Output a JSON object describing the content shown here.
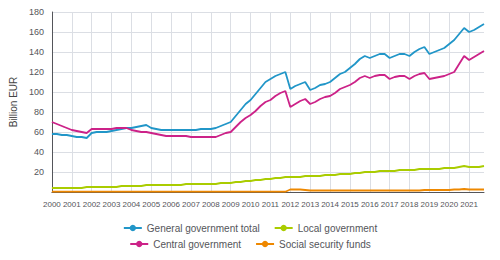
{
  "chart_data": {
    "type": "line",
    "ylabel": "Billion EUR",
    "categories": [
      "2000",
      null,
      null,
      null,
      "2001",
      null,
      null,
      null,
      "2002",
      null,
      null,
      null,
      "2003",
      null,
      null,
      null,
      "2004",
      null,
      null,
      null,
      "2005",
      null,
      null,
      null,
      "2006",
      null,
      null,
      null,
      "2007",
      null,
      null,
      null,
      "2008",
      null,
      null,
      null,
      "2009",
      null,
      null,
      null,
      "2010",
      null,
      null,
      null,
      "2011",
      null,
      null,
      null,
      "2012",
      null,
      null,
      null,
      "2013",
      null,
      null,
      null,
      "2014",
      null,
      null,
      null,
      "2015",
      null,
      null,
      null,
      "2016",
      null,
      null,
      null,
      "2017",
      null,
      null,
      null,
      "2018",
      null,
      null,
      null,
      "2019",
      null,
      null,
      null,
      "2020",
      null,
      null,
      null,
      "2021",
      null,
      null,
      null
    ],
    "series": [
      {
        "name": "General government total",
        "color": "#2196c8",
        "values": [
          58,
          58,
          57,
          57,
          56,
          55,
          55,
          54,
          59,
          60,
          60,
          60,
          61,
          62,
          63,
          64,
          64,
          65,
          66,
          67,
          64,
          63,
          62,
          62,
          62,
          62,
          62,
          62,
          62,
          62,
          63,
          63,
          63,
          64,
          66,
          68,
          70,
          76,
          82,
          88,
          92,
          98,
          104,
          110,
          113,
          116,
          118,
          120,
          103,
          106,
          108,
          110,
          102,
          104,
          107,
          108,
          110,
          114,
          118,
          120,
          124,
          128,
          133,
          136,
          134,
          136,
          138,
          138,
          134,
          136,
          138,
          138,
          136,
          140,
          143,
          145,
          138,
          140,
          142,
          144,
          148,
          152,
          158,
          164,
          160,
          162,
          165,
          168
        ]
      },
      {
        "name": "Central government",
        "color": "#cc2288",
        "values": [
          70,
          68,
          66,
          64,
          62,
          61,
          60,
          59,
          63,
          63,
          63,
          63,
          63,
          64,
          64,
          64,
          62,
          61,
          60,
          60,
          59,
          58,
          57,
          56,
          56,
          56,
          56,
          56,
          55,
          55,
          55,
          55,
          55,
          55,
          57,
          59,
          60,
          65,
          70,
          74,
          77,
          81,
          86,
          90,
          92,
          96,
          99,
          101,
          85,
          88,
          91,
          93,
          88,
          90,
          93,
          95,
          96,
          99,
          103,
          105,
          107,
          110,
          114,
          116,
          114,
          116,
          117,
          117,
          113,
          115,
          116,
          116,
          113,
          116,
          118,
          119,
          113,
          114,
          115,
          116,
          118,
          120,
          128,
          136,
          132,
          135,
          138,
          141
        ]
      },
      {
        "name": "Local government",
        "color": "#aacc00",
        "values": [
          4,
          4,
          4,
          4,
          4,
          4,
          4,
          5,
          5,
          5,
          5,
          5,
          5,
          5,
          6,
          6,
          6,
          6,
          6,
          7,
          7,
          7,
          7,
          7,
          7,
          7,
          7,
          8,
          8,
          8,
          8,
          8,
          8,
          8,
          9,
          9,
          9,
          10,
          10,
          11,
          11,
          12,
          12,
          13,
          13,
          14,
          14,
          15,
          15,
          15,
          15,
          16,
          16,
          16,
          16,
          17,
          17,
          17,
          18,
          18,
          18,
          19,
          19,
          20,
          20,
          20,
          21,
          21,
          21,
          21,
          22,
          22,
          22,
          22,
          23,
          23,
          23,
          23,
          23,
          24,
          24,
          24,
          25,
          26,
          25,
          25,
          25,
          26
        ]
      },
      {
        "name": "Social security funds",
        "color": "#ee8800",
        "values": [
          0.3,
          0.3,
          0.3,
          0.3,
          0.3,
          0.3,
          0.3,
          0.3,
          0.3,
          0.3,
          0.3,
          0.3,
          0.3,
          0.3,
          0.3,
          0.3,
          0.3,
          0.3,
          0.3,
          0.3,
          0.3,
          0.3,
          0.3,
          0.3,
          0.3,
          0.3,
          0.3,
          0.3,
          0.3,
          0.3,
          0.3,
          0.3,
          0.3,
          0.3,
          0.3,
          0.3,
          0.3,
          0.3,
          0.3,
          0.3,
          0.3,
          0.3,
          0.3,
          0.3,
          0.3,
          0.3,
          0.3,
          0.3,
          2.5,
          2.5,
          2.5,
          2.0,
          1.5,
          1.5,
          1.5,
          1.5,
          1.5,
          1.5,
          1.5,
          1.5,
          1.5,
          1.5,
          1.5,
          1.5,
          1.5,
          1.5,
          1.5,
          1.5,
          1.5,
          1.5,
          1.5,
          1.5,
          1.5,
          1.5,
          1.5,
          2.0,
          2.0,
          2.0,
          2.0,
          2.0,
          2.0,
          2.5,
          2.5,
          3.0,
          2.5,
          2.5,
          2.5,
          2.5
        ]
      }
    ],
    "ylim": [
      0,
      180
    ],
    "yticks": [
      20,
      40,
      60,
      80,
      100,
      120,
      140,
      160,
      180
    ],
    "grid": true,
    "legend": "bottom"
  }
}
